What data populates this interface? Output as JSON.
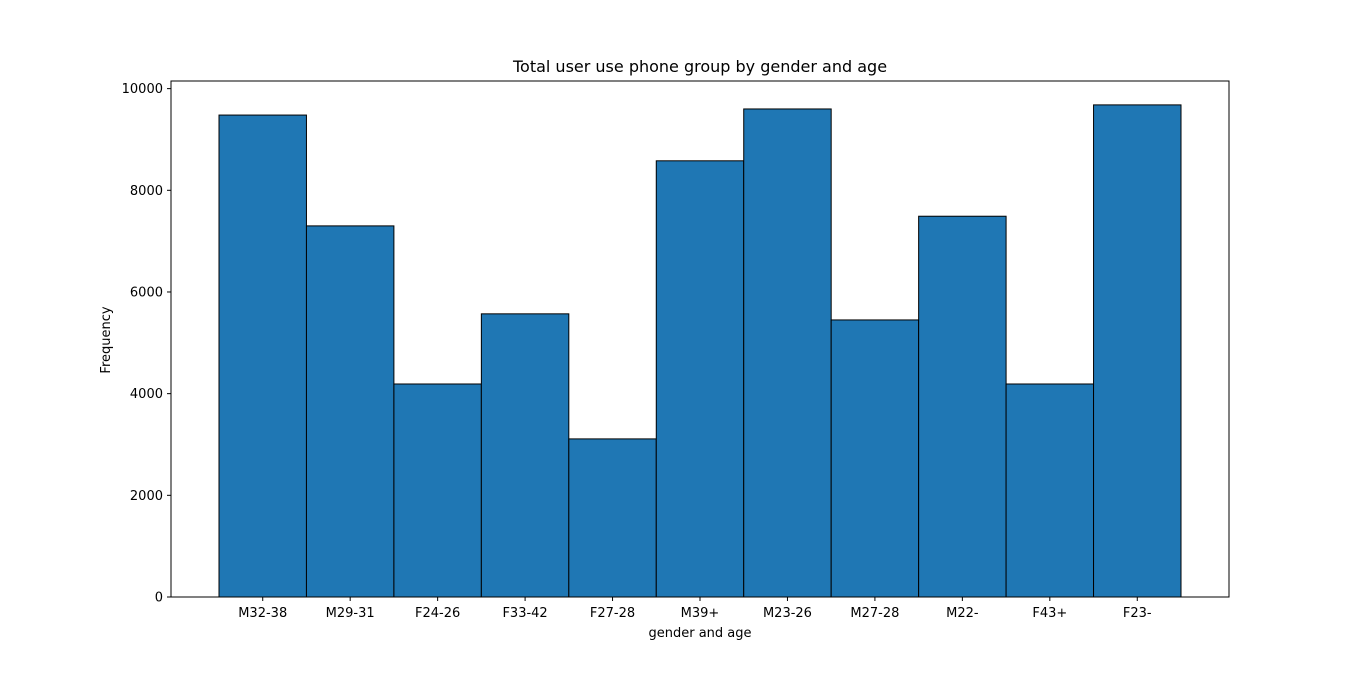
{
  "chart_data": {
    "type": "bar",
    "title": "Total user use phone group by gender and age",
    "xlabel": "gender and age",
    "ylabel": "Frequency",
    "categories": [
      "M32-38",
      "M29-31",
      "F24-26",
      "F33-42",
      "F27-28",
      "M39+",
      "M23-26",
      "M27-28",
      "M22-",
      "F43+",
      "F23-"
    ],
    "values": [
      9480,
      7300,
      4190,
      5570,
      3110,
      8580,
      9600,
      5450,
      7490,
      4190,
      9680
    ],
    "ylim": [
      0,
      10150
    ],
    "yticks": [
      0,
      2000,
      4000,
      6000,
      8000,
      10000
    ],
    "grid": false,
    "bar_color": "#1f77b4",
    "edge_color": "#000000"
  }
}
